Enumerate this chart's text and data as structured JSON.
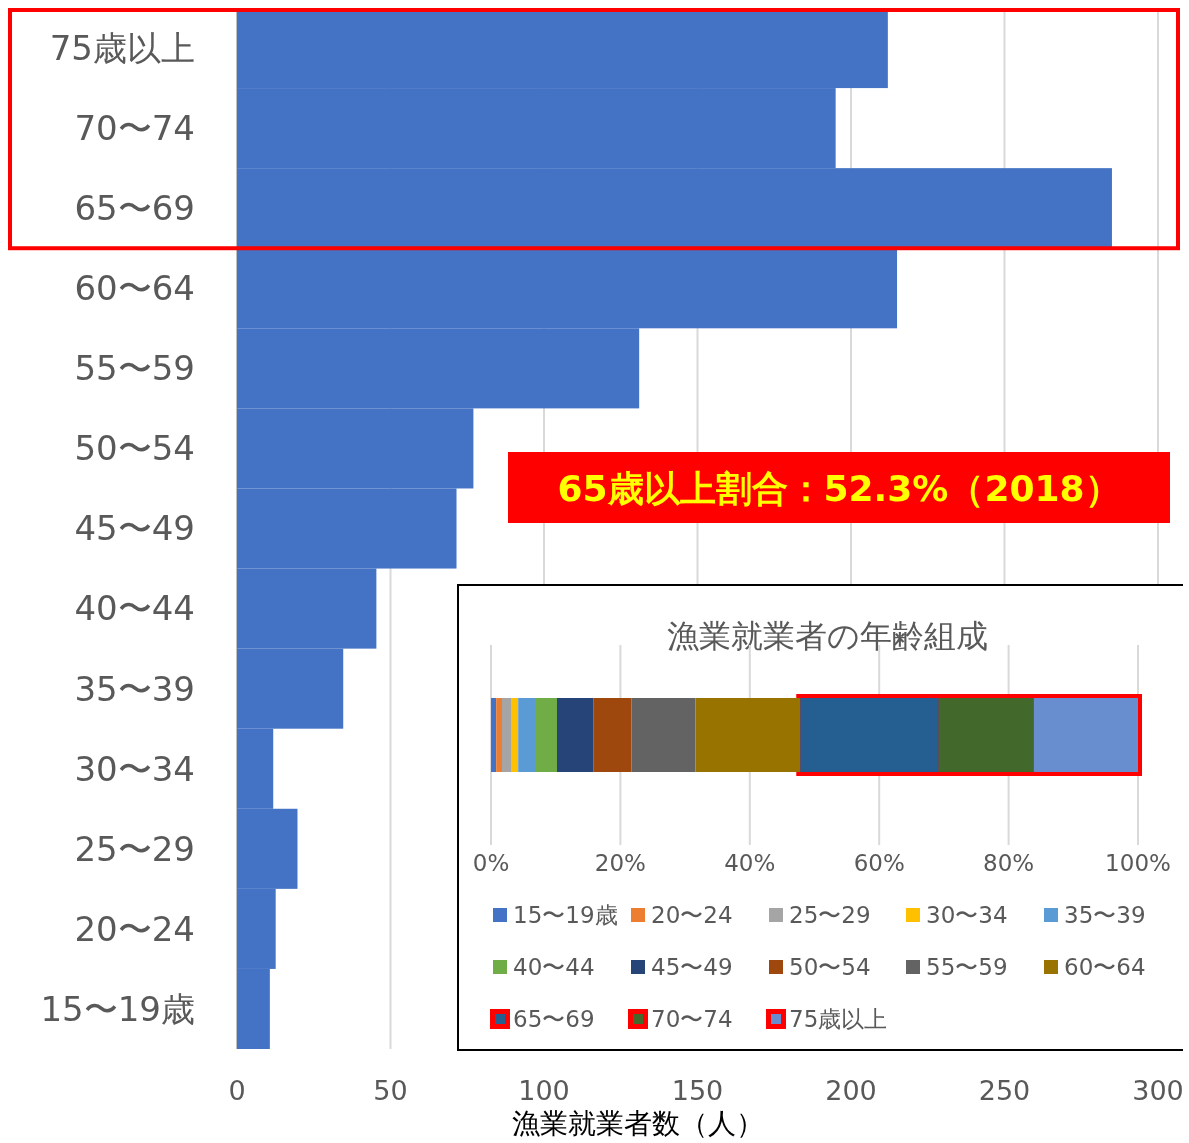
{
  "chart_data": [
    {
      "type": "bar",
      "orientation": "horizontal",
      "xlabel": "漁業就業者数（人）",
      "categories": [
        "75歳以上",
        "70〜74",
        "65〜69",
        "60〜64",
        "55〜59",
        "50〜54",
        "45〜49",
        "40〜44",
        "35〜39",
        "30〜34",
        "25〜29",
        "20〜24",
        "15〜19歳"
      ],
      "values": [
        212,
        195,
        285,
        215,
        131,
        77,
        71.5,
        45.4,
        34.6,
        11.8,
        19.7,
        12.6,
        10.7
      ],
      "color": "#4472c4",
      "xlim": [
        0,
        300
      ],
      "xticks": [
        0,
        50,
        100,
        150,
        200,
        250,
        300
      ],
      "grid": "x",
      "annotations": [
        "65歳以上割合：52.3%（2018）"
      ]
    },
    {
      "type": "bar",
      "orientation": "horizontal",
      "stacked": true,
      "title": "漁業就業者の年齢組成",
      "categories": [
        null
      ],
      "xlim": [
        0,
        100
      ],
      "xticks": [
        {
          "value": 0,
          "label": "0%"
        },
        {
          "value": 20,
          "label": "20%"
        },
        {
          "value": 40,
          "label": "40%"
        },
        {
          "value": 60,
          "label": "60%"
        },
        {
          "value": 80,
          "label": "80%"
        },
        {
          "value": 100,
          "label": "100%"
        }
      ],
      "grid": "x",
      "legend": "bottom",
      "series": [
        {
          "name": "15〜19歳",
          "color": "#4472c4",
          "values": [
            0.8
          ]
        },
        {
          "name": "20〜24",
          "color": "#ed7d31",
          "values": [
            0.9
          ]
        },
        {
          "name": "25〜29",
          "color": "#a5a5a5",
          "values": [
            1.5
          ]
        },
        {
          "name": "30〜34",
          "color": "#ffc000",
          "values": [
            1.0
          ]
        },
        {
          "name": "35〜39",
          "color": "#5b9bd5",
          "values": [
            2.6
          ]
        },
        {
          "name": "40〜44",
          "color": "#70ad47",
          "values": [
            3.4
          ]
        },
        {
          "name": "45〜49",
          "color": "#264478",
          "values": [
            5.6
          ]
        },
        {
          "name": "50〜54",
          "color": "#9e480e",
          "values": [
            5.9
          ]
        },
        {
          "name": "55〜59",
          "color": "#636363",
          "values": [
            9.9
          ]
        },
        {
          "name": "60〜64",
          "color": "#997300",
          "values": [
            16.2
          ]
        },
        {
          "name": "65〜69",
          "color": "#255e91",
          "values": [
            21.4
          ]
        },
        {
          "name": "70〜74",
          "color": "#43682b",
          "values": [
            14.7
          ]
        },
        {
          "name": "75歳以上",
          "color": "#698ed0",
          "values": [
            16.1
          ]
        }
      ]
    }
  ]
}
